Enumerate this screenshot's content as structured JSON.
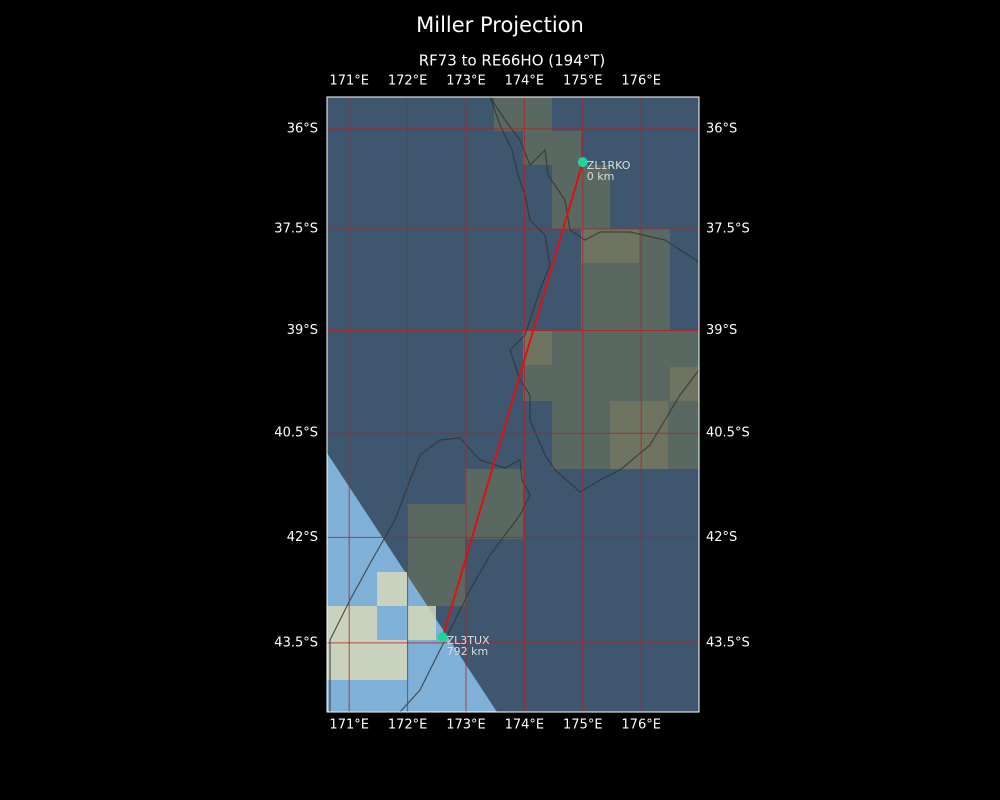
{
  "map": {
    "title": "Miller Projection",
    "subtitle": "RF73 to RE66HO (194°T)",
    "xlim": [
      170.62,
      176.99
    ],
    "ylim": [
      -44.47,
      -35.52
    ],
    "xticks": [
      {
        "value": 171,
        "label": "171°E"
      },
      {
        "value": 172,
        "label": "172°E"
      },
      {
        "value": 173,
        "label": "173°E"
      },
      {
        "value": 174,
        "label": "174°E"
      },
      {
        "value": 175,
        "label": "175°E"
      },
      {
        "value": 176,
        "label": "176°E"
      }
    ],
    "yticks": [
      {
        "value": -36,
        "label": "36°S"
      },
      {
        "value": -37.5,
        "label": "37.5°S"
      },
      {
        "value": -39,
        "label": "39°S"
      },
      {
        "value": -40.5,
        "label": "40.5°S"
      },
      {
        "value": -42,
        "label": "42°S"
      },
      {
        "value": -43.5,
        "label": "43.5°S"
      }
    ],
    "grid": true,
    "path_color": "#e01010",
    "station_color": "#1fd39a",
    "stations": [
      {
        "name": "ZL1RKO",
        "distance": "0 km",
        "lon": 175.0,
        "lat": -36.5
      },
      {
        "name": "ZL3TUX",
        "distance": "792 km",
        "lon": 172.6,
        "lat": -43.42
      }
    ]
  }
}
